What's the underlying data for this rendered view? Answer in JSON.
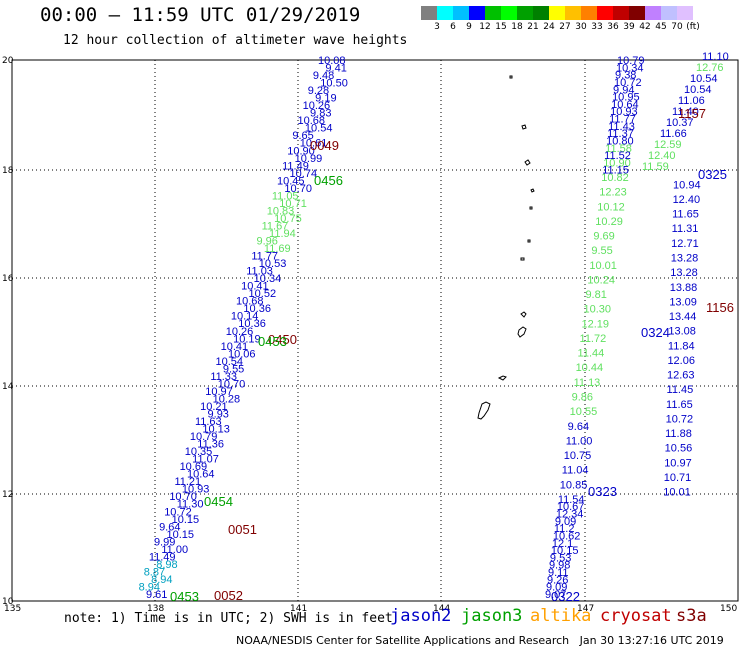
{
  "header": {
    "title": "00:00 – 11:59 UTC 01/29/2019",
    "subtitle": "12 hour collection of altimeter wave heights"
  },
  "color_scale": {
    "colors": [
      "#808080",
      "#00ffff",
      "#00c0ff",
      "#0000ff",
      "#00c000",
      "#00ff00",
      "#00a000",
      "#008000",
      "#ffff00",
      "#ffc000",
      "#ff8000",
      "#ff0000",
      "#c00000",
      "#800000",
      "#c080ff",
      "#c0c0ff",
      "#e0c0ff",
      "#ffffff"
    ],
    "ticks": [
      "3",
      "6",
      "9",
      "12",
      "15",
      "18",
      "21",
      "24",
      "27",
      "30",
      "33",
      "36",
      "39",
      "42",
      "45",
      "70",
      "(ft)"
    ]
  },
  "axes": {
    "lat_labels": [
      "20",
      "18",
      "16",
      "14",
      "12",
      "10"
    ],
    "lon_labels": [
      "135",
      "138",
      "141",
      "144",
      "147",
      "150"
    ]
  },
  "tracks": {
    "colors": {
      "jason2": "#0000c8",
      "jason3": "#00a000",
      "altika": "#ffa000",
      "cryosat": "#c00000",
      "s3a": "#800000",
      "aqua": "#00a0c0",
      "lightgreen": "#60e060"
    },
    "track_a": [
      "10.08",
      "9.41",
      "9.48",
      "10.50",
      "9.28",
      "9.19",
      "10.26",
      "9.83",
      "10.68",
      "10.54",
      "9.65",
      "10.61",
      "10.90",
      "10.99",
      "11.49",
      "10.74",
      "10.45",
      "10.70",
      "11.05",
      "10.71",
      "10.83",
      "10.75",
      "11.67",
      "11.94",
      "9.96",
      "11.69",
      "11.77",
      "10.53",
      "11.03",
      "10.34",
      "10.41",
      "10.52",
      "10.68",
      "10.36",
      "10.14",
      "10.36",
      "10.26",
      "10.19",
      "10.41",
      "10.06",
      "10.54",
      "9.55",
      "11.33",
      "10.70",
      "10.97",
      "10.28",
      "10.21",
      "9.93",
      "11.63",
      "10.13",
      "10.79",
      "11.36",
      "10.35",
      "11.07",
      "10.69",
      "10.64",
      "11.21",
      "10.93",
      "10.70",
      "11.30",
      "10.72",
      "10.15",
      "9.64",
      "10.15",
      "9.99",
      "11.00",
      "11.49",
      "8.98",
      "8.87",
      "8.94",
      "8.94",
      "9.61"
    ],
    "track_b": [
      "10.79",
      "10.34",
      "9.38",
      "10.72",
      "9.94",
      "10.95",
      "10.64",
      "10.93",
      "11.77",
      "11.43",
      "11.37",
      "10.80",
      "11.58",
      "11.52",
      "10.90",
      "11.15",
      "10.82",
      "10.94",
      "12.23",
      "12.40",
      "10.12",
      "11.65",
      "10.29",
      "11.31",
      "9.69",
      "12.71",
      "9.55",
      "13.28",
      "10.01",
      "13.28",
      "10.24",
      "13.88",
      "9.81",
      "13.09",
      "10.30",
      "13.44",
      "12.19",
      "13.08",
      "11.72",
      "11.84",
      "11.44",
      "12.06",
      "10.44",
      "12.63",
      "11.13",
      "11.45",
      "9.86",
      "11.65",
      "10.55",
      "10.72",
      "9.64",
      "11.88",
      "11.00",
      "10.56",
      "10.75",
      "10.97",
      "11.04",
      "10.71",
      "10.85",
      "10.01",
      "11.54",
      "10.67",
      "12.34",
      "9.09",
      "11.2",
      "10.62",
      "12.1",
      "10.15",
      "9.53",
      "9.98",
      "9.11",
      "9.26",
      "9.09",
      "9.07"
    ],
    "track_c": [
      "11.10",
      "12.76",
      "10.54",
      "10.54",
      "11.06",
      "11.40",
      "10.37",
      "11.66",
      "12.59",
      "12.40",
      "11.59"
    ],
    "time_labels": {
      "a1": "0049",
      "a2": "0456",
      "a3": "0450",
      "a4": "0453",
      "a5": "0454",
      "a6": "0051",
      "a7": "0453",
      "a8": "0052",
      "b1": "1157",
      "b2": "0325",
      "b3": "1156",
      "b4": "0324",
      "b5": "0323",
      "b6": "0322"
    }
  },
  "footer": {
    "note": "note: 1) Time is in UTC; 2) SWH is in feet",
    "legend": {
      "jason2": "jason2",
      "jason3": "jason3",
      "altika": "altika",
      "cryosat": "cryosat",
      "s3a": "s3a"
    },
    "credit": "NOAA/NESDIS Center for Satellite Applications and Research   Jan 30 13:27:16 UTC 2019"
  }
}
